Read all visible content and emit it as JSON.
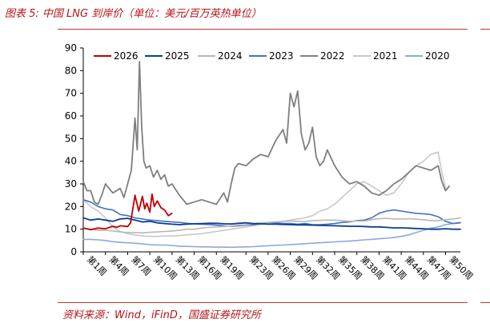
{
  "header": {
    "title": "图表 5:  中国 LNG 到岸价（单位：美元/百万英热单位）"
  },
  "footer": {
    "source": "资料来源：Wind，iFinD，国盛证券研究所"
  },
  "chart_data": {
    "type": "line",
    "title": "图表 5:  中国 LNG 到岸价（单位：美元/百万英热单位）",
    "xlabel": "",
    "ylabel": "",
    "ylim": [
      0,
      90
    ],
    "yticks": [
      0,
      10,
      20,
      30,
      40,
      50,
      60,
      70,
      80,
      90
    ],
    "xlim": [
      1,
      52
    ],
    "xticks": [
      "第1周",
      "第4周",
      "第7周",
      "第10周",
      "第13周",
      "第16周",
      "第19周",
      "第23周",
      "第26周",
      "第29周",
      "第32周",
      "第35周",
      "第38周",
      "第41周",
      "第44周",
      "第47周",
      "第50周"
    ],
    "xtick_weeks": [
      1,
      4,
      7,
      10,
      13,
      16,
      19,
      23,
      26,
      29,
      32,
      35,
      38,
      41,
      44,
      47,
      50
    ],
    "grid": false,
    "legend_position": "top",
    "series": [
      {
        "name": "2026",
        "color": "#c00000",
        "x": [
          1,
          2,
          3,
          4,
          5,
          5.5,
          6,
          7,
          7.4,
          7.8,
          8,
          8.5,
          9,
          9.3,
          9.6,
          10,
          10.3,
          10.6,
          11,
          11.5,
          12,
          12.5,
          13
        ],
        "y": [
          10.5,
          9.8,
          10.5,
          10.2,
          11.3,
          10.8,
          11.5,
          11.2,
          12.8,
          21,
          25,
          18,
          24.5,
          19,
          21.5,
          17.5,
          25.5,
          20,
          22.5,
          19.5,
          18.5,
          16,
          17
        ]
      },
      {
        "name": "2025",
        "color": "#0b3d91",
        "x": [
          1,
          2,
          3,
          4,
          5,
          6,
          7,
          8,
          9,
          10,
          11,
          12,
          13,
          14,
          15,
          16,
          17,
          18,
          19,
          20,
          21,
          22,
          23,
          24,
          25,
          26,
          27,
          28,
          29,
          30,
          31,
          32,
          33,
          34,
          35,
          36,
          37,
          38,
          39,
          40,
          41,
          42,
          43,
          44,
          45,
          46,
          47,
          48,
          49,
          50,
          51,
          52
        ],
        "y": [
          15,
          14,
          14.5,
          14,
          13.5,
          14.5,
          14.8,
          14,
          13.2,
          13.5,
          12.8,
          12.5,
          12.2,
          12,
          12.2,
          12.4,
          12.5,
          12.6,
          12.6,
          12.4,
          12.3,
          12.6,
          12.8,
          12.5,
          12.4,
          12.2,
          12.2,
          12.1,
          12,
          11.9,
          11.9,
          11.8,
          11.7,
          11.6,
          11.5,
          11.4,
          11.3,
          11.3,
          11.2,
          11,
          11,
          10.8,
          10.6,
          10.6,
          10.5,
          10.3,
          10.2,
          10,
          10,
          10.2,
          10,
          10
        ]
      },
      {
        "name": "2024",
        "color": "#b8b8b8",
        "x": [
          1,
          2,
          3,
          4,
          5,
          6,
          7,
          8,
          9,
          10,
          11,
          12,
          13,
          14,
          15,
          16,
          17,
          18,
          19,
          20,
          21,
          22,
          23,
          24,
          25,
          26,
          27,
          28,
          29,
          30,
          31,
          32,
          33,
          34,
          35,
          36,
          37,
          38,
          39,
          40,
          41,
          42,
          43,
          44,
          45,
          46,
          47,
          48,
          49,
          50,
          51,
          52
        ],
        "y": [
          10.5,
          10,
          9.5,
          9.5,
          9.2,
          8.8,
          8.5,
          8.5,
          8.4,
          8.6,
          8.8,
          9,
          9.2,
          9.5,
          10,
          10,
          10.5,
          10.8,
          11,
          11.2,
          11.5,
          11.8,
          12,
          12.5,
          12.8,
          13,
          13.2,
          13.4,
          13.6,
          13.5,
          13.4,
          13.8,
          13.9,
          14,
          14,
          13.8,
          13.5,
          13.6,
          13.6,
          14.2,
          14.6,
          14.8,
          14.5,
          14.5,
          14.6,
          14.4,
          14.2,
          13.8,
          13.8,
          14.2,
          14.5,
          15
        ]
      },
      {
        "name": "2023",
        "color": "#4472c4",
        "x": [
          1,
          2,
          3,
          4,
          5,
          6,
          7,
          8,
          9,
          10,
          11,
          12,
          13,
          14,
          15,
          16,
          17,
          18,
          19,
          20,
          21,
          22,
          23,
          24,
          25,
          26,
          27,
          28,
          29,
          30,
          31,
          32,
          33,
          34,
          35,
          36,
          37,
          38,
          39,
          40,
          41,
          42,
          43,
          44,
          45,
          46,
          47,
          48,
          49,
          50,
          51,
          52
        ],
        "y": [
          23,
          22,
          20,
          19,
          18.5,
          16.5,
          16,
          15,
          14.5,
          14,
          13.8,
          13.5,
          13.2,
          13,
          12.6,
          12.3,
          12.2,
          12,
          11.8,
          11.5,
          11.3,
          11.5,
          11.8,
          12,
          12.5,
          13,
          12.8,
          12.5,
          12.5,
          12.2,
          12.5,
          12,
          12,
          12.2,
          12.5,
          13,
          13.2,
          13.8,
          14,
          15,
          17,
          18,
          18.5,
          18,
          17.5,
          17,
          16.8,
          16.5,
          15.5,
          13.5,
          12.5,
          12.8
        ]
      },
      {
        "name": "2022",
        "color": "#7f7f7f",
        "x": [
          1,
          1.5,
          2,
          2.5,
          3,
          3.5,
          4,
          5,
          6,
          6.5,
          7,
          7.5,
          8,
          8.3,
          8.6,
          8.9,
          9.2,
          9.5,
          10,
          10.5,
          11,
          11.5,
          12,
          12.5,
          13,
          14,
          15,
          16,
          17,
          18,
          19,
          20,
          20.5,
          21,
          21.5,
          22,
          23,
          24,
          25,
          26,
          27,
          28,
          28.5,
          29,
          29.5,
          30,
          30.5,
          31,
          31.5,
          32,
          32.5,
          33,
          33.5,
          34,
          35,
          36,
          37,
          38,
          39,
          40,
          41,
          42,
          43,
          44,
          45,
          46,
          47,
          48,
          49,
          49.5,
          50,
          50.5
        ],
        "y": [
          31,
          27,
          27,
          22,
          21,
          25,
          30,
          26,
          28,
          24,
          30,
          36,
          59,
          45,
          84,
          55,
          40,
          37,
          38,
          33,
          36,
          32,
          34,
          29,
          30,
          25,
          21,
          22,
          23,
          22,
          21,
          26,
          22,
          30,
          37,
          39,
          38,
          41,
          43,
          42,
          49,
          54,
          48,
          70,
          64,
          71,
          52,
          45,
          48,
          55,
          42,
          38,
          40,
          45,
          38,
          33,
          30,
          31,
          29,
          26,
          25,
          27,
          30,
          32,
          35,
          38,
          37,
          36,
          38,
          31,
          27,
          29
        ]
      },
      {
        "name": "2021",
        "color": "#c8c8c8",
        "x": [
          1,
          2,
          3,
          4,
          5,
          6,
          7,
          8,
          9,
          10,
          11,
          12,
          13,
          14,
          15,
          16,
          17,
          18,
          19,
          20,
          21,
          22,
          23,
          24,
          25,
          26,
          27,
          28,
          29,
          30,
          31,
          32,
          33,
          34,
          35,
          36,
          37,
          38,
          39,
          40,
          41,
          42,
          43,
          44,
          45,
          46,
          47,
          48,
          49,
          49.5,
          50
        ],
        "y": [
          23,
          20,
          18,
          15,
          11,
          9,
          8,
          7.5,
          7,
          6.8,
          6.8,
          7,
          7,
          7.2,
          7.5,
          7.8,
          8,
          8.5,
          9,
          9.5,
          10,
          10.5,
          11,
          11.5,
          12,
          12.5,
          13,
          13.5,
          14,
          14.5,
          15,
          16,
          18,
          19,
          21,
          24,
          27,
          30,
          31,
          29,
          27,
          25,
          26,
          30,
          35,
          38,
          40,
          43,
          44,
          35,
          28
        ]
      },
      {
        "name": "2020",
        "color": "#8ea9db",
        "x": [
          1,
          2,
          3,
          4,
          5,
          6,
          7,
          8,
          9,
          10,
          11,
          12,
          13,
          14,
          15,
          16,
          17,
          18,
          19,
          20,
          21,
          22,
          23,
          24,
          25,
          26,
          27,
          28,
          29,
          30,
          31,
          32,
          33,
          34,
          35,
          36,
          37,
          38,
          39,
          40,
          41,
          42,
          43,
          44,
          45,
          46,
          47,
          48,
          49,
          50,
          51,
          52
        ],
        "y": [
          5.5,
          5.5,
          5.3,
          5,
          4.5,
          4.2,
          4,
          3.8,
          3.5,
          3.2,
          3,
          3,
          2.8,
          2.5,
          2.4,
          2.3,
          2.2,
          2.2,
          2.1,
          2.1,
          2,
          2.1,
          2.2,
          2.3,
          2.5,
          2.7,
          2.9,
          3,
          3.2,
          3.4,
          3.6,
          3.8,
          4,
          4.2,
          4.4,
          4.6,
          4.8,
          5,
          5.3,
          5.5,
          5.8,
          6,
          6.3,
          6.8,
          7.5,
          8.5,
          9.5,
          10.5,
          11,
          12,
          12.5,
          13
        ]
      }
    ]
  }
}
